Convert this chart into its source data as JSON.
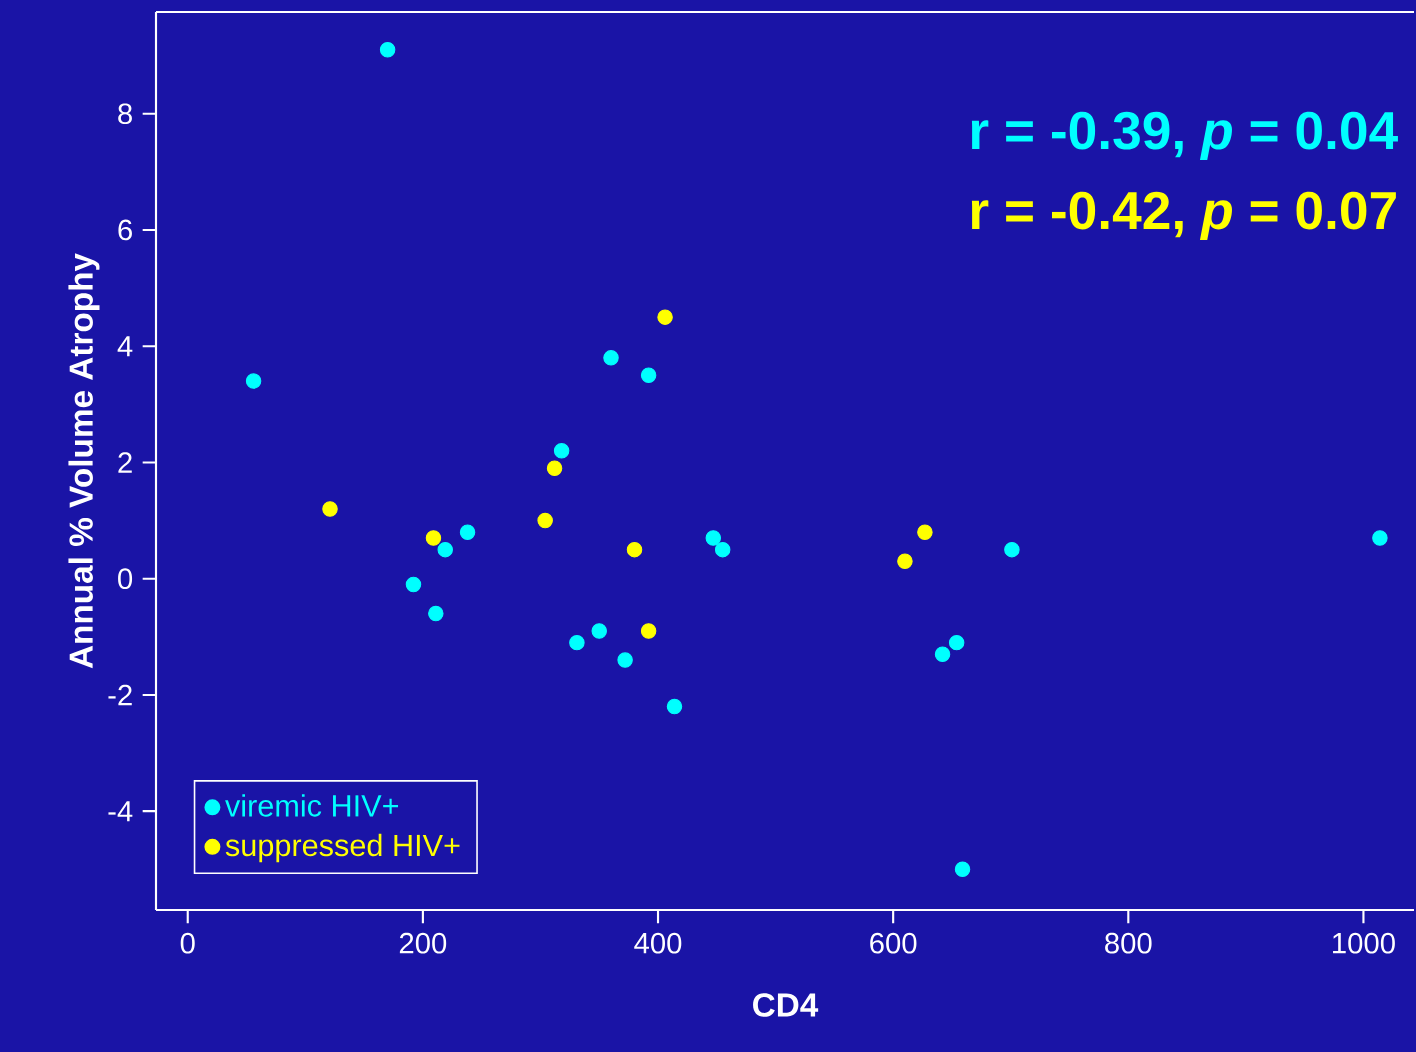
{
  "chart_data": {
    "type": "scatter",
    "xlabel": "CD4",
    "ylabel": "Annual % Volume Atrophy",
    "annotations": [
      "r  = -0.39, *p* = 0.04",
      "r  = -0.42, *p* = 0.07"
    ],
    "series": [
      {
        "name": "viremic HIV+",
        "color": "#00ffff",
        "x": [
          56,
          170,
          192,
          211,
          219,
          238,
          318,
          331,
          350,
          360,
          372,
          392,
          414,
          447,
          455,
          642,
          654,
          659,
          701,
          1014
        ],
        "values": [
          3.4,
          9.1,
          -0.1,
          -0.6,
          0.5,
          0.8,
          2.2,
          -1.1,
          -0.9,
          3.8,
          -1.4,
          3.5,
          -2.2,
          0.7,
          0.5,
          -1.3,
          -1.1,
          -5.0,
          0.5,
          0.7
        ]
      },
      {
        "name": "suppressed HIV+",
        "color": "#ffff00",
        "x": [
          121,
          209,
          304,
          312,
          380,
          392,
          406,
          610,
          627
        ],
        "values": [
          1.2,
          0.7,
          1.0,
          1.9,
          0.5,
          -0.9,
          4.5,
          0.3,
          0.8
        ]
      }
    ],
    "xlim": [
      -27,
      1043
    ],
    "ylim": [
      -5.7,
      9.75
    ],
    "xticks": [
      0,
      200,
      400,
      600,
      800,
      1000
    ],
    "yticks": [
      -4,
      -2,
      0,
      2,
      4,
      6,
      8
    ],
    "grid": false,
    "legend": "bottom left",
    "marker": "circle"
  }
}
